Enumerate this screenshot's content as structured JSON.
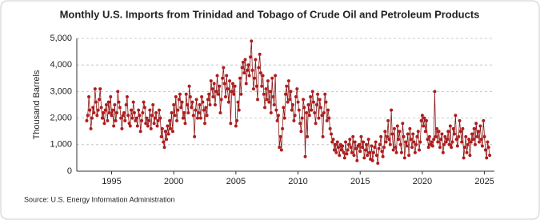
{
  "chart_data": {
    "type": "line",
    "title": "Monthly U.S. Imports from Trinidad and Tobago of Crude Oil and Petroleum Products",
    "y_label": "Thousand Barrels",
    "source": "Source: U.S. Energy Information Administration",
    "xlim": [
      1992.2,
      2025.8
    ],
    "xticks": [
      1995,
      2000,
      2005,
      2010,
      2015,
      2020,
      2025
    ],
    "ylim": [
      0,
      5000
    ],
    "yticks": [
      0,
      {
        "value": 1000,
        "label": "1,000"
      },
      {
        "value": 2000,
        "label": "2,000"
      },
      {
        "value": 3000,
        "label": "3,000"
      },
      {
        "value": 4000,
        "label": "4,000"
      },
      {
        "value": 5000,
        "label": "5,000"
      }
    ],
    "grid": true,
    "x": [
      1993.0,
      1993.08,
      1993.17,
      1993.25,
      1993.33,
      1993.42,
      1993.5,
      1993.58,
      1993.67,
      1993.75,
      1993.83,
      1993.92,
      1994.0,
      1994.08,
      1994.17,
      1994.25,
      1994.33,
      1994.42,
      1994.5,
      1994.58,
      1994.67,
      1994.75,
      1994.83,
      1994.92,
      1995.0,
      1995.08,
      1995.17,
      1995.25,
      1995.33,
      1995.42,
      1995.5,
      1995.58,
      1995.67,
      1995.75,
      1995.83,
      1995.92,
      1996.0,
      1996.08,
      1996.17,
      1996.25,
      1996.33,
      1996.42,
      1996.5,
      1996.58,
      1996.67,
      1996.75,
      1996.83,
      1996.92,
      1997.0,
      1997.08,
      1997.17,
      1997.25,
      1997.33,
      1997.42,
      1997.5,
      1997.58,
      1997.67,
      1997.75,
      1997.83,
      1997.92,
      1998.0,
      1998.08,
      1998.17,
      1998.25,
      1998.33,
      1998.42,
      1998.5,
      1998.58,
      1998.67,
      1998.75,
      1998.83,
      1998.92,
      1999.0,
      1999.08,
      1999.17,
      1999.25,
      1999.33,
      1999.42,
      1999.5,
      1999.58,
      1999.67,
      1999.75,
      1999.83,
      1999.92,
      2000.0,
      2000.08,
      2000.17,
      2000.25,
      2000.33,
      2000.42,
      2000.5,
      2000.58,
      2000.67,
      2000.75,
      2000.83,
      2000.92,
      2001.0,
      2001.08,
      2001.17,
      2001.25,
      2001.33,
      2001.42,
      2001.5,
      2001.58,
      2001.67,
      2001.75,
      2001.83,
      2001.92,
      2002.0,
      2002.08,
      2002.17,
      2002.25,
      2002.33,
      2002.42,
      2002.5,
      2002.58,
      2002.67,
      2002.75,
      2002.83,
      2002.92,
      2003.0,
      2003.08,
      2003.17,
      2003.25,
      2003.33,
      2003.42,
      2003.5,
      2003.58,
      2003.67,
      2003.75,
      2003.83,
      2003.92,
      2004.0,
      2004.08,
      2004.17,
      2004.25,
      2004.33,
      2004.42,
      2004.5,
      2004.58,
      2004.67,
      2004.75,
      2004.83,
      2004.92,
      2005.0,
      2005.08,
      2005.17,
      2005.25,
      2005.33,
      2005.42,
      2005.5,
      2005.58,
      2005.67,
      2005.75,
      2005.83,
      2005.92,
      2006.0,
      2006.08,
      2006.17,
      2006.25,
      2006.33,
      2006.42,
      2006.5,
      2006.58,
      2006.67,
      2006.75,
      2006.83,
      2006.92,
      2007.0,
      2007.08,
      2007.17,
      2007.25,
      2007.33,
      2007.42,
      2007.5,
      2007.58,
      2007.67,
      2007.75,
      2007.83,
      2007.92,
      2008.0,
      2008.08,
      2008.17,
      2008.25,
      2008.33,
      2008.42,
      2008.5,
      2008.58,
      2008.67,
      2008.75,
      2008.83,
      2008.92,
      2009.0,
      2009.08,
      2009.17,
      2009.25,
      2009.33,
      2009.42,
      2009.5,
      2009.58,
      2009.67,
      2009.75,
      2009.83,
      2009.92,
      2010.0,
      2010.08,
      2010.17,
      2010.25,
      2010.33,
      2010.42,
      2010.5,
      2010.58,
      2010.67,
      2010.75,
      2010.83,
      2010.92,
      2011.0,
      2011.08,
      2011.17,
      2011.25,
      2011.33,
      2011.42,
      2011.5,
      2011.58,
      2011.67,
      2011.75,
      2011.83,
      2011.92,
      2012.0,
      2012.08,
      2012.17,
      2012.25,
      2012.33,
      2012.42,
      2012.5,
      2012.58,
      2012.67,
      2012.75,
      2012.83,
      2012.92,
      2013.0,
      2013.08,
      2013.17,
      2013.25,
      2013.33,
      2013.42,
      2013.5,
      2013.58,
      2013.67,
      2013.75,
      2013.83,
      2013.92,
      2014.0,
      2014.08,
      2014.17,
      2014.25,
      2014.33,
      2014.42,
      2014.5,
      2014.58,
      2014.67,
      2014.75,
      2014.83,
      2014.92,
      2015.0,
      2015.08,
      2015.17,
      2015.25,
      2015.33,
      2015.42,
      2015.5,
      2015.58,
      2015.67,
      2015.75,
      2015.83,
      2015.92,
      2016.0,
      2016.08,
      2016.17,
      2016.25,
      2016.33,
      2016.42,
      2016.5,
      2016.58,
      2016.67,
      2016.75,
      2016.83,
      2016.92,
      2017.0,
      2017.08,
      2017.17,
      2017.25,
      2017.33,
      2017.42,
      2017.5,
      2017.58,
      2017.67,
      2017.75,
      2017.83,
      2017.92,
      2018.0,
      2018.08,
      2018.17,
      2018.25,
      2018.33,
      2018.42,
      2018.5,
      2018.58,
      2018.67,
      2018.75,
      2018.83,
      2018.92,
      2019.0,
      2019.08,
      2019.17,
      2019.25,
      2019.33,
      2019.42,
      2019.5,
      2019.58,
      2019.67,
      2019.75,
      2019.83,
      2019.92,
      2020.0,
      2020.08,
      2020.17,
      2020.25,
      2020.33,
      2020.42,
      2020.5,
      2020.58,
      2020.67,
      2020.75,
      2020.83,
      2020.92,
      2021.0,
      2021.08,
      2021.17,
      2021.25,
      2021.33,
      2021.42,
      2021.5,
      2021.58,
      2021.67,
      2021.75,
      2021.83,
      2021.92,
      2022.0,
      2022.08,
      2022.17,
      2022.25,
      2022.33,
      2022.42,
      2022.5,
      2022.58,
      2022.67,
      2022.75,
      2022.83,
      2022.92,
      2023.0,
      2023.08,
      2023.17,
      2023.25,
      2023.33,
      2023.42,
      2023.5,
      2023.58,
      2023.67,
      2023.75,
      2023.83,
      2023.92,
      2024.0,
      2024.08,
      2024.17,
      2024.25,
      2024.33,
      2024.42,
      2024.5,
      2024.58,
      2024.67,
      2024.75,
      2024.83,
      2024.92,
      2025.0,
      2025.08,
      2025.17,
      2025.25,
      2025.33,
      2025.42
    ],
    "series": [
      {
        "color": "#b01c1c",
        "line_color": "#8b1a1a",
        "values": [
          1900,
          2100,
          2800,
          2300,
          1600,
          2000,
          2400,
          2200,
          3100,
          2600,
          2100,
          2300,
          2700,
          3100,
          2400,
          2000,
          2200,
          1800,
          2300,
          2500,
          1900,
          2600,
          2200,
          2800,
          2100,
          2300,
          1700,
          2500,
          1900,
          2200,
          3000,
          2600,
          2400,
          2000,
          1600,
          2100,
          2200,
          1900,
          2500,
          2800,
          2100,
          1800,
          1700,
          2300,
          2000,
          2600,
          2200,
          1900,
          2000,
          1700,
          2300,
          2100,
          1500,
          1900,
          2200,
          2600,
          2400,
          1800,
          2000,
          1700,
          1900,
          2300,
          1600,
          2100,
          2500,
          1800,
          2000,
          2200,
          1700,
          1900,
          2300,
          2000,
          1300,
          1600,
          1100,
          900,
          1500,
          1200,
          1700,
          1400,
          1900,
          1600,
          2200,
          1500,
          2500,
          2100,
          2800,
          1900,
          2300,
          2700,
          2900,
          2400,
          2600,
          2000,
          2200,
          1800,
          2900,
          2500,
          2200,
          3200,
          2800,
          2400,
          2600,
          2100,
          1300,
          2300,
          2700,
          2000,
          2200,
          2500,
          2000,
          2800,
          2600,
          2300,
          1800,
          2400,
          2100,
          2700,
          2900,
          2500,
          3400,
          3100,
          2800,
          3300,
          2500,
          3000,
          3600,
          2900,
          3200,
          2200,
          2700,
          3500,
          3900,
          3300,
          2800,
          3600,
          3100,
          2600,
          3400,
          1800,
          3000,
          3300,
          2900,
          3200,
          1700,
          1900,
          2600,
          2300,
          3500,
          2900,
          3900,
          4100,
          3700,
          4200,
          3300,
          3800,
          4000,
          3600,
          4300,
          4900,
          3800,
          3100,
          3500,
          4200,
          3200,
          2700,
          3900,
          4400,
          3700,
          3200,
          3600,
          2900,
          2400,
          3100,
          2700,
          3400,
          2600,
          3000,
          2200,
          3500,
          2800,
          2500,
          3600,
          2300,
          1900,
          2100,
          900,
          1300,
          800,
          1600,
          2400,
          2000,
          2900,
          3200,
          2600,
          3400,
          2700,
          3000,
          2300,
          2500,
          1900,
          2100,
          2800,
          3100,
          2600,
          2300,
          1800,
          1500,
          2000,
          2700,
          2400,
          550,
          2200,
          1300,
          2500,
          2100,
          2800,
          2300,
          3000,
          2600,
          2200,
          1800,
          2500,
          2900,
          2000,
          2700,
          2400,
          2100,
          1300,
          2200,
          2900,
          2600,
          1900,
          2300,
          2000,
          1600,
          1400,
          1100,
          1200,
          800,
          1000,
          700,
          1100,
          900,
          600,
          1000,
          800,
          950,
          700,
          500,
          1100,
          650,
          800,
          1000,
          1200,
          900,
          700,
          1300,
          600,
          1100,
          850,
          400,
          950,
          1000,
          750,
          1300,
          900,
          1100,
          500,
          800,
          1000,
          600,
          1200,
          700,
          450,
          950,
          400,
          700,
          900,
          1100,
          600,
          300,
          850,
          1000,
          1300,
          750,
          550,
          900,
          1500,
          1100,
          1300,
          1900,
          1200,
          1000,
          2300,
          1400,
          800,
          1600,
          900,
          700,
          1700,
          1200,
          1500,
          1000,
          700,
          1800,
          1300,
          500,
          1100,
          950,
          1400,
          600,
          1600,
          1200,
          900,
          1400,
          1100,
          700,
          1000,
          1300,
          1500,
          800,
          1100,
          1900,
          2100,
          1700,
          2000,
          1500,
          1900,
          1200,
          900,
          1300,
          1000,
          1100,
          950,
          1200,
          3000,
          1300,
          1600,
          1100,
          1500,
          900,
          1200,
          1400,
          700,
          1000,
          1300,
          1100,
          1200,
          1500,
          1000,
          1700,
          900,
          1100,
          1600,
          1400,
          2100,
          1200,
          950,
          1300,
          1900,
          1500,
          1100,
          1600,
          500,
          900,
          1300,
          700,
          1000,
          1200,
          600,
          1100,
          1400,
          1200,
          1600,
          1000,
          1800,
          1300,
          1500,
          1100,
          1700,
          1200,
          950,
          1900,
          1300,
          800,
          500,
          1100,
          900,
          600
        ]
      }
    ]
  }
}
